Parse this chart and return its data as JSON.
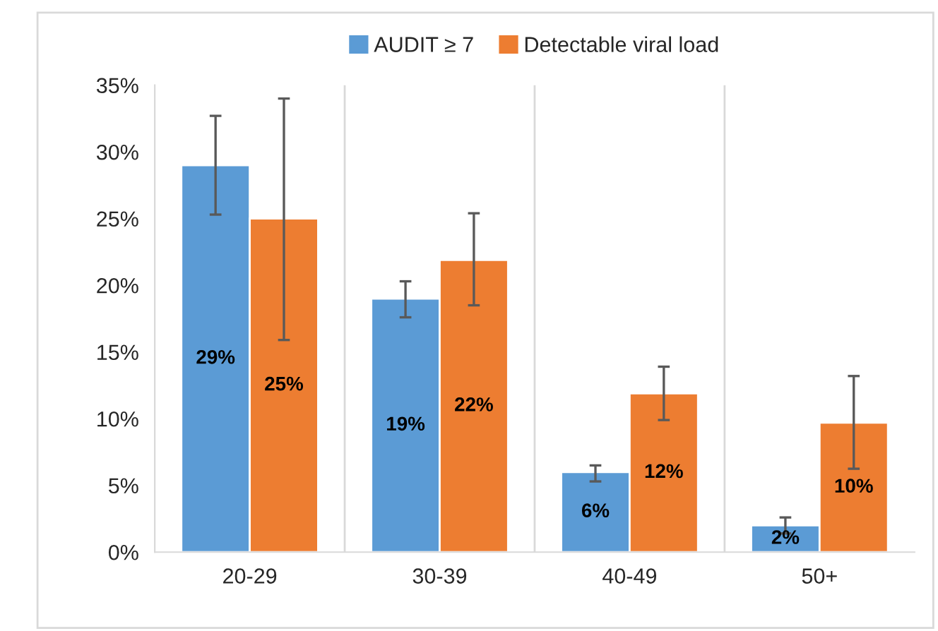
{
  "chart_data": {
    "type": "bar",
    "categories": [
      "20-29",
      "30-39",
      "40-49",
      "50+"
    ],
    "series": [
      {
        "name": "AUDIT ≥ 7",
        "color": "#5b9bd5",
        "values": [
          29,
          19,
          6,
          2
        ],
        "errors": [
          [
            25.3,
            32.7
          ],
          [
            17.6,
            20.3
          ],
          [
            5.3,
            6.5
          ],
          [
            1.4,
            2.6
          ]
        ],
        "value_labels": [
          "29%",
          "19%",
          "6%",
          "2%"
        ]
      },
      {
        "name": "Detectable viral load",
        "color": "#ed7d31",
        "values": [
          25,
          21.9,
          11.9,
          9.7
        ],
        "errors": [
          [
            15.9,
            34.0
          ],
          [
            18.5,
            25.4
          ],
          [
            9.9,
            13.9
          ],
          [
            6.25,
            13.2
          ]
        ],
        "value_labels": [
          "25%",
          "22%",
          "12%",
          "10%"
        ]
      }
    ],
    "ylim": [
      0,
      35
    ],
    "yticks": [
      {
        "value": 0,
        "label": "0%"
      },
      {
        "value": 5,
        "label": "5%"
      },
      {
        "value": 10,
        "label": "10%"
      },
      {
        "value": 15,
        "label": "15%"
      },
      {
        "value": 20,
        "label": "20%"
      },
      {
        "value": 25,
        "label": "25%"
      },
      {
        "value": 30,
        "label": "30%"
      },
      {
        "value": 35,
        "label": "35%"
      }
    ],
    "grid": "x",
    "legend": "top"
  }
}
